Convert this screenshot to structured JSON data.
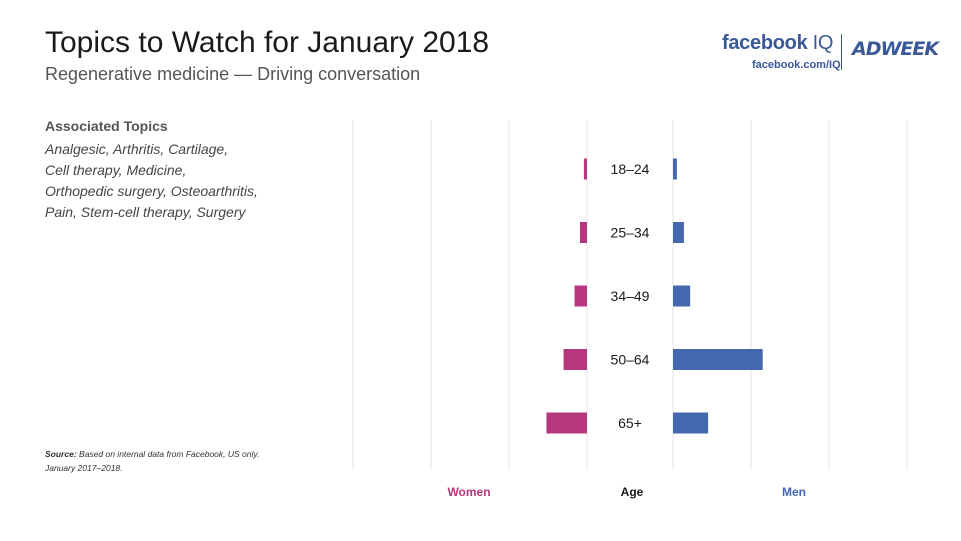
{
  "header": {
    "title": "Topics to Watch for January 2018",
    "subtitle": "Regenerative medicine — Driving conversation"
  },
  "brand": {
    "facebook": "facebook",
    "iq": "IQ",
    "url": "facebook.com/IQ",
    "partner": "ADWEEK"
  },
  "associated": {
    "label": "Associated Topics",
    "lines": [
      "Analgesic, Arthritis, Cartilage,",
      "Cell therapy, Medicine,",
      "Orthopedic surgery, Osteoarthritis,",
      "Pain, Stem-cell therapy, Surgery"
    ]
  },
  "source": {
    "label": "Source:",
    "text": "Based on internal data from Facebook, US only.",
    "line2": "January 2017–2018."
  },
  "colors": {
    "women": "#b5387f",
    "men": "#4467ae",
    "grid": "#e4e4e4"
  },
  "chart_data": {
    "type": "bar",
    "orientation": "horizontal-diverging",
    "categories": [
      "18–24",
      "25–34",
      "34–49",
      "50–64",
      "65+"
    ],
    "category_axis_label": "Age",
    "series": [
      {
        "name": "Women",
        "side": "left",
        "values": [
          0.4,
          0.9,
          1.6,
          3.0,
          5.2
        ]
      },
      {
        "name": "Men",
        "side": "right",
        "values": [
          0.5,
          1.4,
          2.2,
          11.5,
          4.5
        ]
      }
    ],
    "xlim": [
      0,
      30
    ],
    "grid": true,
    "legend": "bottom"
  }
}
